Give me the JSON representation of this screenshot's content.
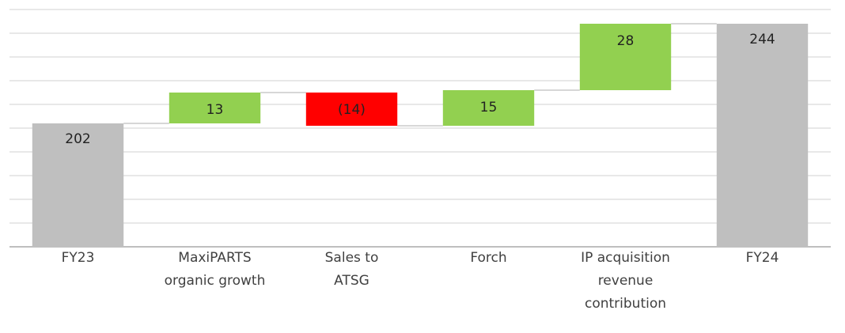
{
  "chart_data": {
    "type": "waterfall",
    "categories": [
      [
        "FY23"
      ],
      [
        "MaxiPARTS",
        "organic growth"
      ],
      [
        "Sales to",
        "ATSG"
      ],
      [
        "Forch"
      ],
      [
        "IP acquisition",
        "revenue",
        "contribution"
      ],
      [
        "FY24"
      ]
    ],
    "values": [
      202,
      13,
      -14,
      15,
      28,
      244
    ],
    "value_labels": [
      "202",
      "13",
      "(14)",
      "15",
      "28",
      "244"
    ],
    "totals": [
      true,
      false,
      false,
      false,
      false,
      true
    ],
    "colors": {
      "total": "#bfbfbf",
      "increase": "#92d050",
      "decrease": "#ff0000"
    },
    "ylim": [
      150,
      250
    ],
    "yticks": [
      150,
      160,
      170,
      180,
      190,
      200,
      210,
      220,
      230,
      240,
      250
    ],
    "grid": true
  }
}
